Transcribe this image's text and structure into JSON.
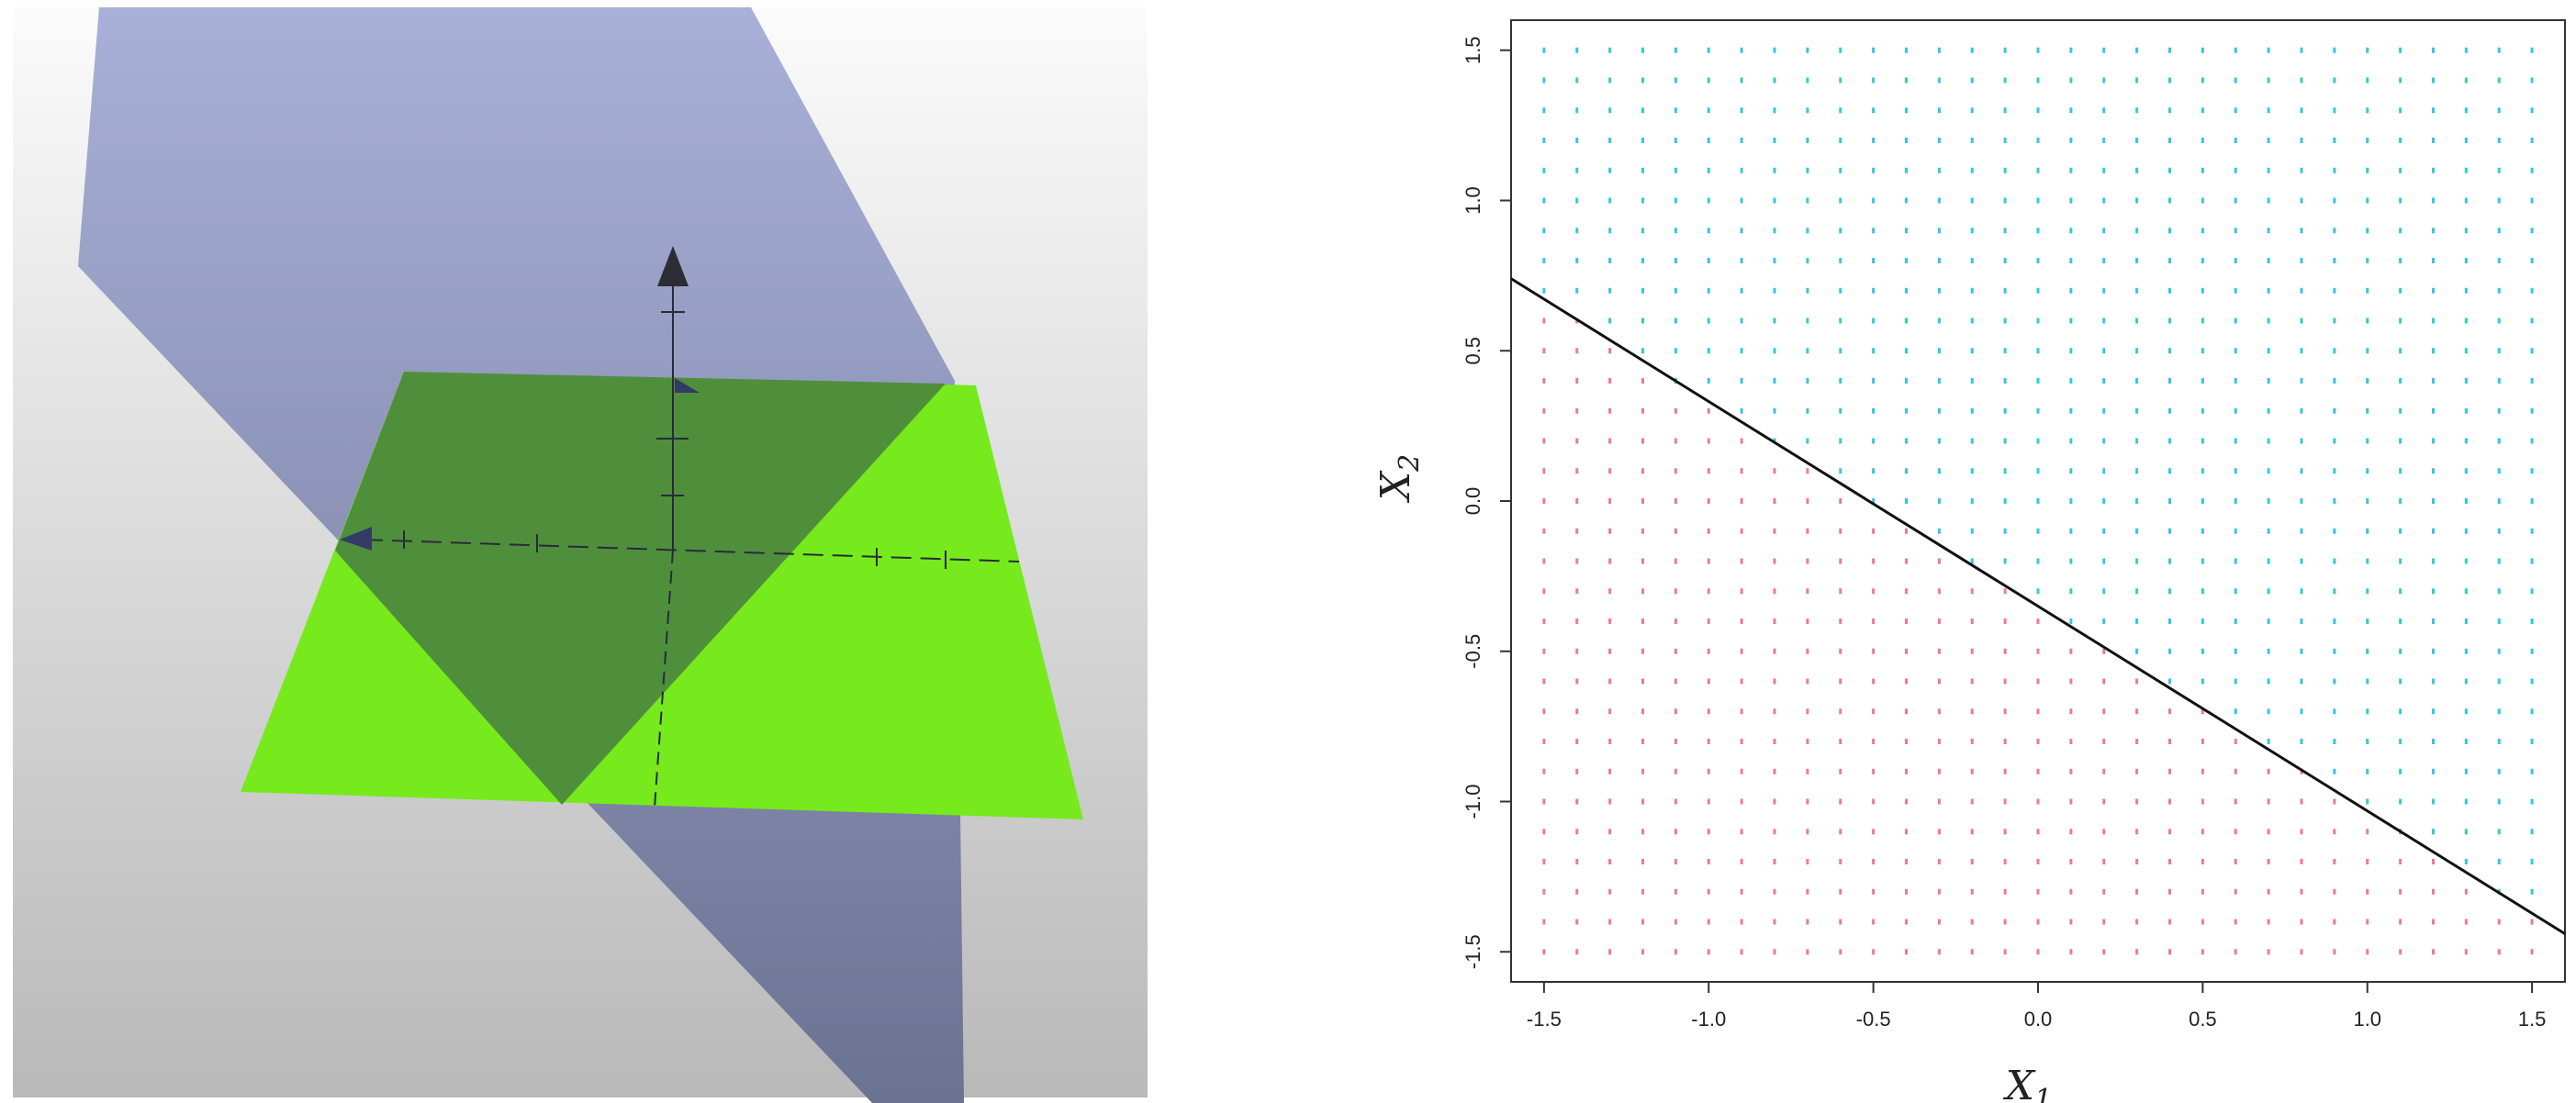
{
  "panels": {
    "left": {
      "description_free": true
    },
    "right": {
      "x_title": "X",
      "x_sub": "1",
      "y_title": "X",
      "y_sub": "2"
    }
  },
  "colors": {
    "region_above": "#33c9d8",
    "region_below": "#f07a8a",
    "plane_blue": "#8f96c2",
    "plane_green": "#74ea1d",
    "boundary_line": "#111111"
  },
  "chart_data": {
    "type": "scatter",
    "title": "",
    "xlabel": "X1",
    "ylabel": "X2",
    "xlim": [
      -1.6,
      1.6
    ],
    "ylim": [
      -1.6,
      1.6
    ],
    "x_ticks": [
      -1.5,
      -1.0,
      -0.5,
      0.0,
      0.5,
      1.0,
      1.5
    ],
    "x_tick_labels": [
      "-1.5",
      "-1.0",
      "-0.5",
      "0.0",
      "0.5",
      "1.0",
      "1.5"
    ],
    "y_ticks": [
      -1.5,
      -1.0,
      -0.5,
      0.0,
      0.5,
      1.0,
      1.5
    ],
    "y_tick_labels": [
      "-1.5",
      "-1.0",
      "-0.5",
      "0.0",
      "0.5",
      "1.0",
      "1.5"
    ],
    "grid_points": {
      "from": -1.5,
      "to": 1.5,
      "step": 0.1
    },
    "boundary_line": {
      "x": [
        -1.6,
        1.6
      ],
      "y": [
        0.74,
        -1.44
      ]
    },
    "series": [
      {
        "class": "above",
        "color": "#33c9d8"
      },
      {
        "class": "below",
        "color": "#f07a8a"
      }
    ],
    "grid": false,
    "legend": "none"
  }
}
